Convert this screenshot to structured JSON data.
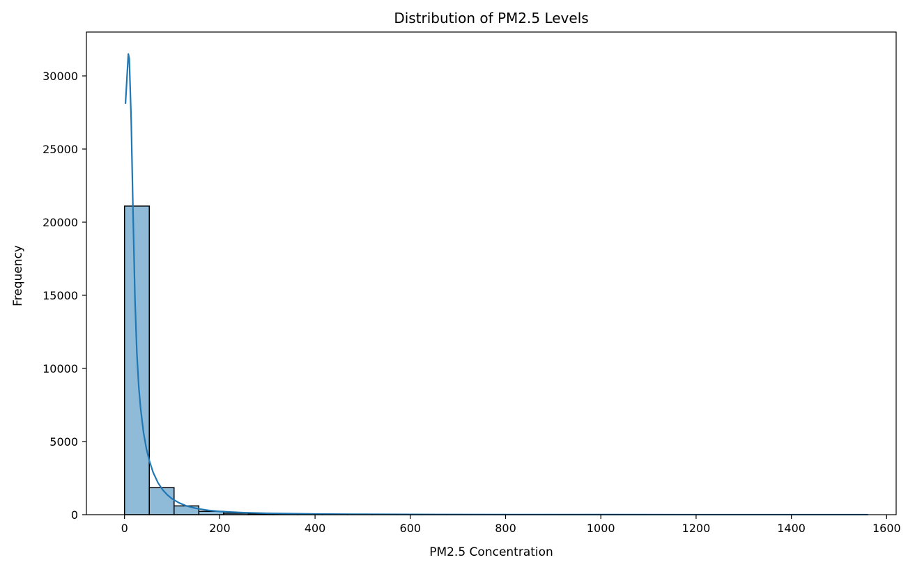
{
  "chart_data": {
    "type": "bar",
    "subtype": "histogram",
    "title": "Distribution of PM2.5 Levels",
    "xlabel": "PM2.5 Concentration",
    "ylabel": "Frequency",
    "xlim": [
      -80,
      1620
    ],
    "ylim": [
      0,
      33000
    ],
    "xticks": [
      0,
      200,
      400,
      600,
      800,
      1000,
      1200,
      1400,
      1600
    ],
    "yticks": [
      0,
      5000,
      10000,
      15000,
      20000,
      25000,
      30000
    ],
    "grid": false,
    "bar_color": "#1f77b4",
    "bar_opacity": 0.5,
    "edge_color": "#000000",
    "bins": [
      {
        "x0": 0,
        "x1": 52,
        "value": 21100
      },
      {
        "x0": 52,
        "x1": 104,
        "value": 1850
      },
      {
        "x0": 104,
        "x1": 156,
        "value": 600
      },
      {
        "x0": 156,
        "x1": 208,
        "value": 230
      },
      {
        "x0": 208,
        "x1": 260,
        "value": 100
      },
      {
        "x0": 260,
        "x1": 312,
        "value": 55
      },
      {
        "x0": 312,
        "x1": 364,
        "value": 35
      },
      {
        "x0": 364,
        "x1": 416,
        "value": 25
      },
      {
        "x0": 416,
        "x1": 468,
        "value": 18
      },
      {
        "x0": 468,
        "x1": 520,
        "value": 12
      },
      {
        "x0": 520,
        "x1": 572,
        "value": 8
      },
      {
        "x0": 572,
        "x1": 624,
        "value": 6
      },
      {
        "x0": 624,
        "x1": 676,
        "value": 5
      },
      {
        "x0": 676,
        "x1": 728,
        "value": 4
      },
      {
        "x0": 728,
        "x1": 780,
        "value": 3
      },
      {
        "x0": 780,
        "x1": 832,
        "value": 3
      },
      {
        "x0": 832,
        "x1": 884,
        "value": 2
      },
      {
        "x0": 884,
        "x1": 936,
        "value": 2
      },
      {
        "x0": 936,
        "x1": 988,
        "value": 2
      },
      {
        "x0": 988,
        "x1": 1040,
        "value": 1
      },
      {
        "x0": 1040,
        "x1": 1092,
        "value": 1
      },
      {
        "x0": 1092,
        "x1": 1144,
        "value": 1
      },
      {
        "x0": 1144,
        "x1": 1196,
        "value": 1
      },
      {
        "x0": 1196,
        "x1": 1248,
        "value": 1
      },
      {
        "x0": 1248,
        "x1": 1300,
        "value": 1
      },
      {
        "x0": 1300,
        "x1": 1352,
        "value": 1
      },
      {
        "x0": 1352,
        "x1": 1404,
        "value": 1
      },
      {
        "x0": 1404,
        "x1": 1456,
        "value": 1
      },
      {
        "x0": 1456,
        "x1": 1508,
        "value": 1
      },
      {
        "x0": 1508,
        "x1": 1560,
        "value": 1
      }
    ],
    "kde": {
      "color": "#1f77b4",
      "x": [
        2,
        8,
        10,
        14,
        18,
        22,
        26,
        30,
        34,
        40,
        46,
        52,
        60,
        70,
        80,
        90,
        100,
        115,
        130,
        150,
        175,
        200,
        250,
        300,
        400,
        500,
        600,
        800,
        1000,
        1200,
        1400,
        1560
      ],
      "y": [
        28100,
        31500,
        31200,
        27000,
        20500,
        14700,
        11000,
        8700,
        7200,
        5600,
        4500,
        3700,
        2900,
        2200,
        1700,
        1350,
        1080,
        800,
        600,
        430,
        300,
        220,
        140,
        95,
        50,
        30,
        18,
        10,
        6,
        4,
        3,
        2
      ]
    }
  }
}
